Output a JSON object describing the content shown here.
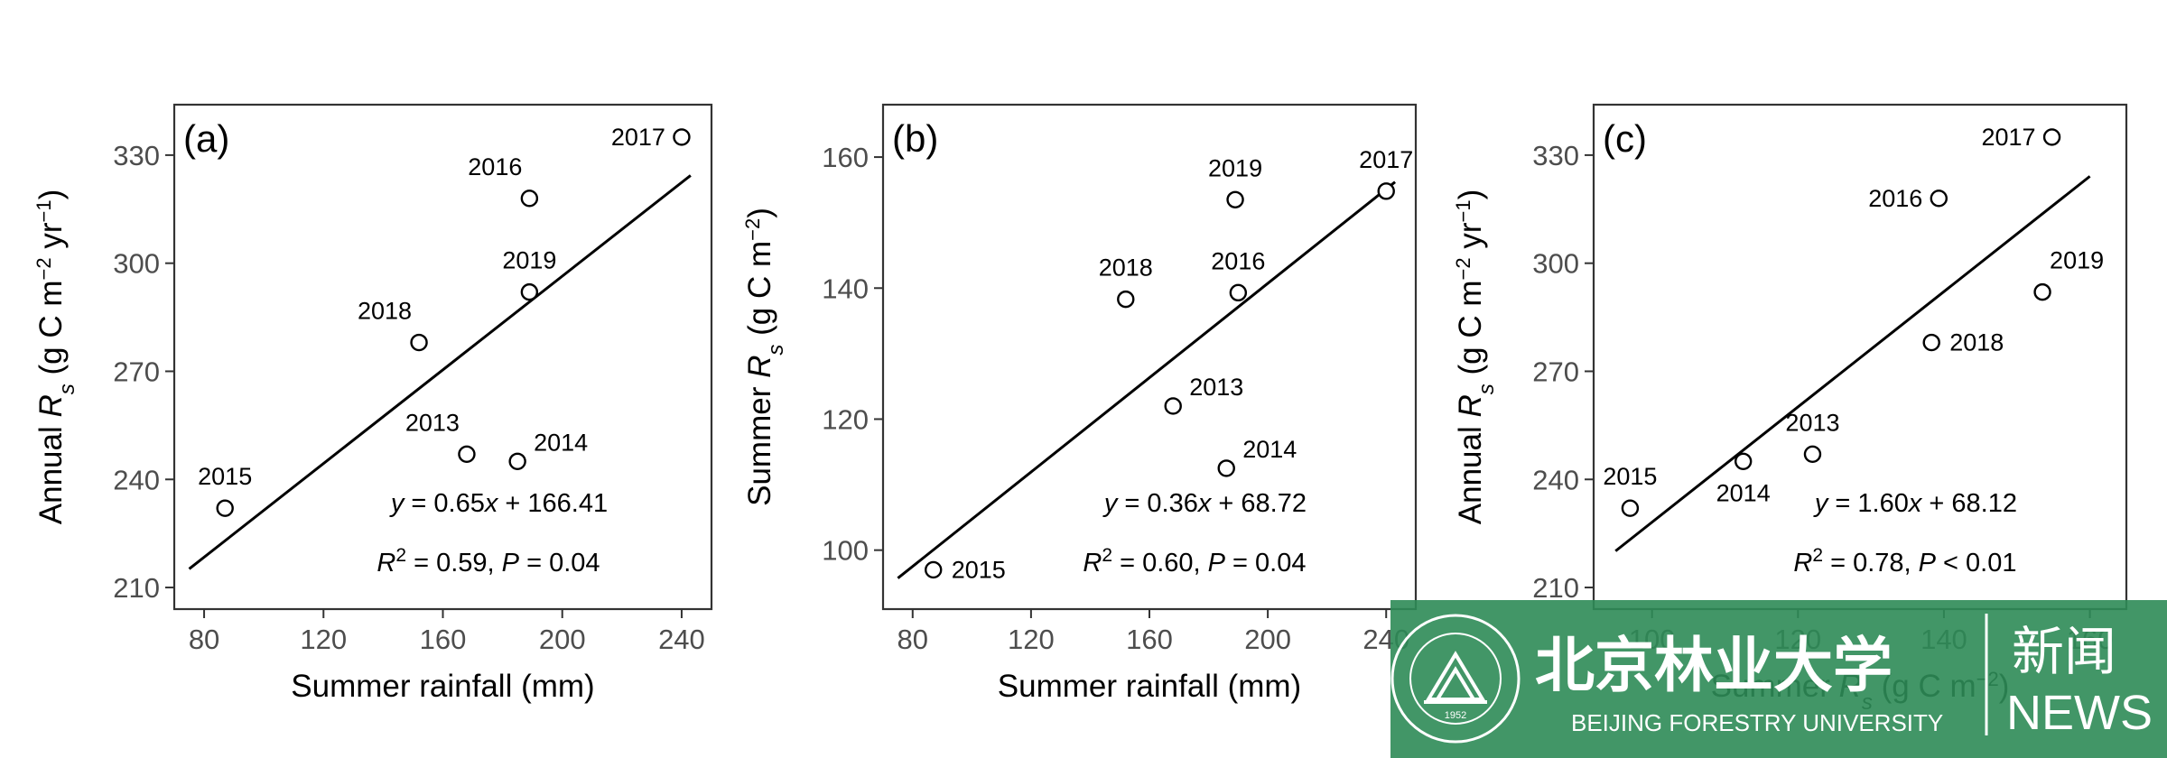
{
  "chart_data": [
    {
      "type": "scatter",
      "panel_label": "(a)",
      "xlabel": "Summer rainfall (mm)",
      "ylabel": {
        "prefix": "Annual ",
        "var": "R",
        "sub": "s",
        "unit": " (g C m",
        "e1": "−2",
        "mid": " yr",
        "e2": "−1",
        "close": ")"
      },
      "xlim": [
        70,
        250
      ],
      "ylim": [
        204,
        344
      ],
      "xticks": [
        80,
        120,
        160,
        200,
        240
      ],
      "yticks": [
        210,
        240,
        270,
        300,
        330
      ],
      "grid": false,
      "points": [
        {
          "label": "2013",
          "x": 168,
          "y": 247,
          "label_pos": "above-left"
        },
        {
          "label": "2014",
          "x": 185,
          "y": 245,
          "label_pos": "upper-right"
        },
        {
          "label": "2015",
          "x": 87,
          "y": 232,
          "label_pos": "above"
        },
        {
          "label": "2016",
          "x": 189,
          "y": 318,
          "label_pos": "above-left"
        },
        {
          "label": "2017",
          "x": 240,
          "y": 335,
          "label_pos": "left"
        },
        {
          "label": "2018",
          "x": 152,
          "y": 278,
          "label_pos": "above-left"
        },
        {
          "label": "2019",
          "x": 189,
          "y": 292,
          "label_pos": "above"
        }
      ],
      "fit": {
        "slope": 0.65,
        "intercept": 166.41,
        "x_range": [
          75,
          243
        ]
      },
      "equation": {
        "y": "y",
        "eq": " = 0.65",
        "x": "x",
        "rest": " + 166.41"
      },
      "stats": {
        "r": "R",
        "sup": "2",
        "r_val": " = 0.59,  ",
        "p": "P",
        "p_val": " = 0.04"
      }
    },
    {
      "type": "scatter",
      "panel_label": "(b)",
      "xlabel": "Summer rainfall (mm)",
      "ylabel": {
        "prefix": "Summer ",
        "var": "R",
        "sub": "s",
        "unit": " (g C m",
        "e1": "−2",
        "close": ")"
      },
      "xlim": [
        70,
        250
      ],
      "ylim": [
        91,
        168
      ],
      "xticks": [
        80,
        120,
        160,
        200,
        240
      ],
      "yticks": [
        100,
        120,
        140,
        160
      ],
      "grid": false,
      "points": [
        {
          "label": "2013",
          "x": 168,
          "y": 122,
          "label_pos": "upper-right"
        },
        {
          "label": "2014",
          "x": 186,
          "y": 112.5,
          "label_pos": "upper-right"
        },
        {
          "label": "2015",
          "x": 87,
          "y": 97,
          "label_pos": "right"
        },
        {
          "label": "2016",
          "x": 190,
          "y": 139.3,
          "label_pos": "above"
        },
        {
          "label": "2017",
          "x": 240,
          "y": 154.8,
          "label_pos": "above"
        },
        {
          "label": "2018",
          "x": 152,
          "y": 138.3,
          "label_pos": "above"
        },
        {
          "label": "2019",
          "x": 189,
          "y": 153.5,
          "label_pos": "above"
        }
      ],
      "fit": {
        "slope": 0.36,
        "intercept": 68.72,
        "x_range": [
          75,
          243
        ]
      },
      "equation": {
        "y": "y",
        "eq": " = 0.36",
        "x": "x",
        "rest": " + 68.72"
      },
      "stats": {
        "r": "R",
        "sup": "2",
        "r_val": " = 0.60,  ",
        "p": "P",
        "p_val": " = 0.04"
      }
    },
    {
      "type": "scatter",
      "panel_label": "(c)",
      "xlabel": {
        "prefix": "Summer ",
        "var": "R",
        "sub": "s",
        "unit": " (g C m",
        "e1": "−2",
        "close": ")"
      },
      "ylabel": {
        "prefix": "Annual ",
        "var": "R",
        "sub": "s",
        "unit": " (g C m",
        "e1": "−2",
        "mid": " yr",
        "e2": "−1",
        "close": ")"
      },
      "xlim": [
        92,
        165
      ],
      "ylim": [
        204,
        344
      ],
      "xticks": [
        100,
        120,
        140,
        160
      ],
      "yticks": [
        210,
        240,
        270,
        300,
        330
      ],
      "grid": false,
      "points": [
        {
          "label": "2013",
          "x": 122,
          "y": 247,
          "label_pos": "above"
        },
        {
          "label": "2014",
          "x": 112.5,
          "y": 245,
          "label_pos": "below"
        },
        {
          "label": "2015",
          "x": 97,
          "y": 232,
          "label_pos": "above"
        },
        {
          "label": "2016",
          "x": 139.3,
          "y": 318,
          "label_pos": "left"
        },
        {
          "label": "2017",
          "x": 154.8,
          "y": 335,
          "label_pos": "left"
        },
        {
          "label": "2018",
          "x": 138.3,
          "y": 278,
          "label_pos": "right"
        },
        {
          "label": "2019",
          "x": 153.5,
          "y": 292,
          "label_pos": "above-right"
        }
      ],
      "fit": {
        "slope": 1.6,
        "intercept": 68.12,
        "x_range": [
          95,
          160
        ]
      },
      "equation": {
        "y": "y",
        "eq": " = 1.60",
        "x": "x",
        "rest": " + 68.12"
      },
      "stats": {
        "r": "R",
        "sup": "2",
        "r_val": " = 0.78,  ",
        "p": "P",
        "p_val": " < 0.01"
      }
    }
  ],
  "watermark": {
    "university_cn": "北京林业大学",
    "university_en": "BEIJING FORESTRY UNIVERSITY",
    "news_cn": "新闻",
    "news_en": "NEWS",
    "seal_year": "1952",
    "seal_text": "BEIJING FORESTRY UNIVERSITY",
    "background_color": "#2e8b57",
    "text_color": "#ffffff"
  }
}
